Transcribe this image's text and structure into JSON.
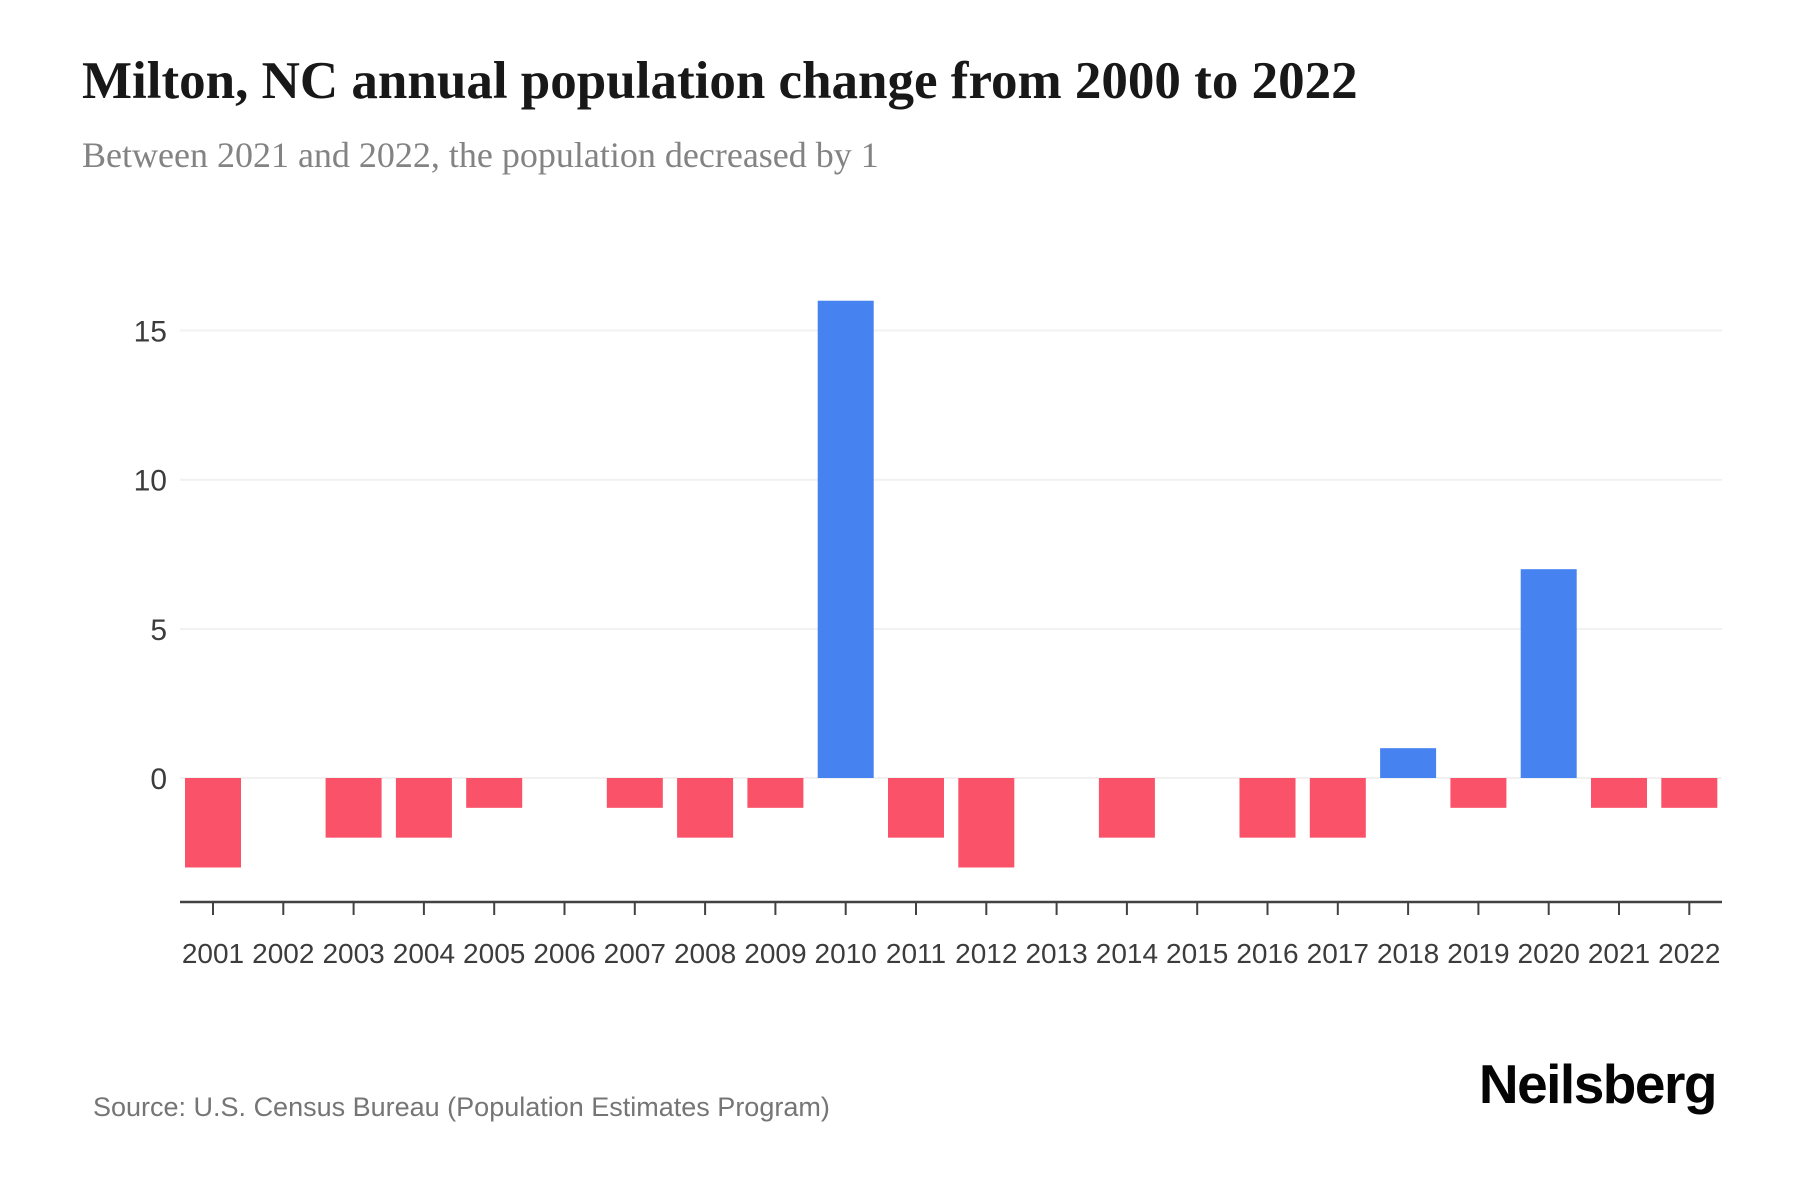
{
  "page": {
    "title": "Milton, NC annual population change from 2000 to 2022",
    "subtitle": "Between 2021 and 2022, the population decreased by 1",
    "source": "Source: U.S. Census Bureau (Population Estimates Program)",
    "brand": "Neilsberg"
  },
  "colors": {
    "positive_bar": "#4683f0",
    "negative_bar": "#fa5268",
    "gridline": "#f1f1f1",
    "axis_line": "#424242",
    "axis_tick": "#424242",
    "tick_label": "#3c3c3c",
    "background": "#ffffff"
  },
  "chart_data": {
    "type": "bar",
    "title": "Milton, NC annual population change from 2000 to 2022",
    "subtitle": "Between 2021 and 2022, the population decreased by 1",
    "categories": [
      "2001",
      "2002",
      "2003",
      "2004",
      "2005",
      "2006",
      "2007",
      "2008",
      "2009",
      "2010",
      "2011",
      "2012",
      "2013",
      "2014",
      "2015",
      "2016",
      "2017",
      "2018",
      "2019",
      "2020",
      "2021",
      "2022"
    ],
    "values": [
      -3,
      0,
      -2,
      -2,
      -1,
      0,
      -1,
      -2,
      -1,
      16,
      -2,
      -3,
      0,
      -2,
      0,
      -2,
      -2,
      1,
      -1,
      7,
      -1,
      -1
    ],
    "xlabel": "",
    "ylabel": "",
    "y_ticks": [
      0,
      5,
      10,
      15
    ],
    "ylim": [
      -4.2,
      17.5
    ],
    "grid": true,
    "legend": false,
    "positive_color": "#4683f0",
    "negative_color": "#fa5268"
  }
}
